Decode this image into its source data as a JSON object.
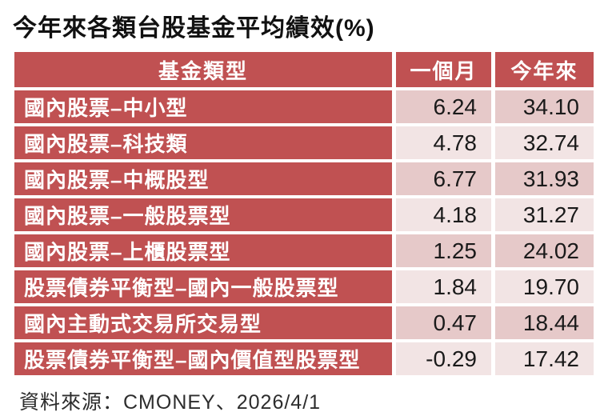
{
  "title": "今年來各類台股基金平均績效(%)",
  "source_note": "資料來源：CMONEY、2026/4/1",
  "colors": {
    "header_red": "#c05152",
    "row_pink_dark": "#e6c9c9",
    "row_pink_light": "#f2e4e4",
    "header_text": "#ffffff",
    "number_text": "#1a1a1a"
  },
  "table": {
    "columns": [
      {
        "key": "fund_type",
        "label": "基金類型"
      },
      {
        "key": "one_month",
        "label": "一個月"
      },
      {
        "key": "ytd",
        "label": "今年來"
      }
    ],
    "rows": [
      {
        "fund_type": "國內股票–中小型",
        "one_month": "6.24",
        "ytd": "34.10"
      },
      {
        "fund_type": "國內股票–科技類",
        "one_month": "4.78",
        "ytd": "32.74"
      },
      {
        "fund_type": "國內股票–中概股型",
        "one_month": "6.77",
        "ytd": "31.93"
      },
      {
        "fund_type": "國內股票–一般股票型",
        "one_month": "4.18",
        "ytd": "31.27"
      },
      {
        "fund_type": "國內股票–上櫃股票型",
        "one_month": "1.25",
        "ytd": "24.02"
      },
      {
        "fund_type": "股票債券平衡型–國內一般股票型",
        "one_month": "1.84",
        "ytd": "19.70"
      },
      {
        "fund_type": "國內主動式交易所交易型",
        "one_month": "0.47",
        "ytd": "18.44"
      },
      {
        "fund_type": "股票債券平衡型–國內價值型股票型",
        "one_month": "-0.29",
        "ytd": "17.42"
      }
    ]
  },
  "chart_data": {
    "type": "table",
    "title": "今年來各類台股基金平均績效(%)",
    "columns": [
      "基金類型",
      "一個月",
      "今年來"
    ],
    "rows": [
      [
        "國內股票–中小型",
        6.24,
        34.1
      ],
      [
        "國內股票–科技類",
        4.78,
        32.74
      ],
      [
        "國內股票–中概股型",
        6.77,
        31.93
      ],
      [
        "國內股票–一般股票型",
        4.18,
        31.27
      ],
      [
        "國內股票–上櫃股票型",
        1.25,
        24.02
      ],
      [
        "股票債券平衡型–國內一般股票型",
        1.84,
        19.7
      ],
      [
        "國內主動式交易所交易型",
        0.47,
        18.44
      ],
      [
        "股票債券平衡型–國內價值型股票型",
        -0.29,
        17.42
      ]
    ],
    "source": "CMONEY",
    "date": "2026/4/1",
    "unit": "%"
  }
}
